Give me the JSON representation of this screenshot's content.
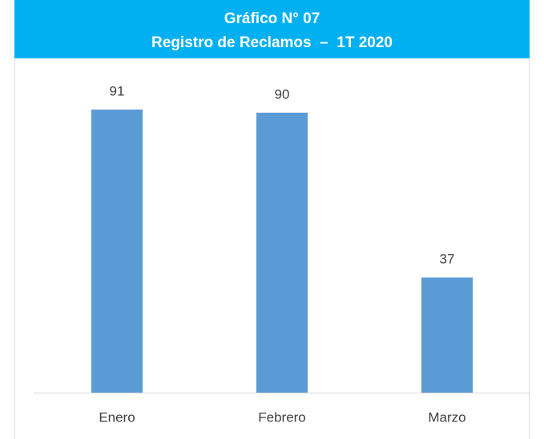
{
  "chart_data": {
    "type": "bar",
    "title": "Gráfico N° 07",
    "subtitle": "Registro de Reclamos  –  1T 2020",
    "categories": [
      "Enero",
      "Febrero",
      "Marzo"
    ],
    "values": [
      91,
      90,
      37
    ],
    "color": "#5b9bd5"
  }
}
